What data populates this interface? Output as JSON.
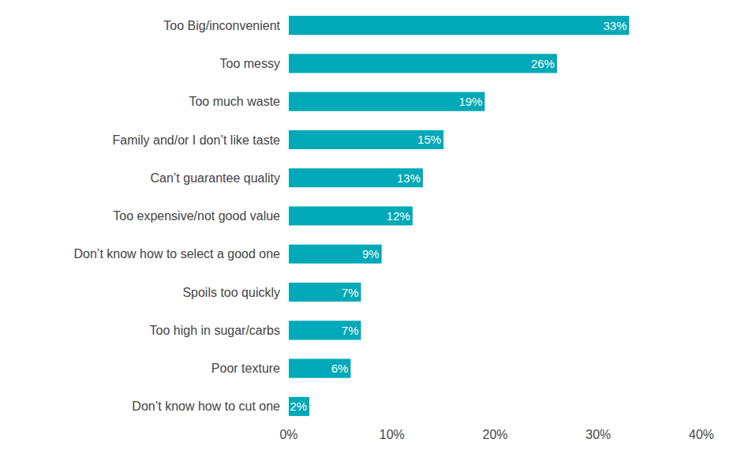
{
  "chart_data": {
    "type": "bar",
    "orientation": "horizontal",
    "categories": [
      "Too Big/inconvenient",
      "Too messy",
      "Too much waste",
      "Family and/or I don’t like taste",
      "Can’t guarantee quality",
      "Too expensive/not good value",
      "Don’t know how to select a good one",
      "Spoils too quickly",
      "Too high in sugar/carbs",
      "Poor texture",
      "Don’t know how to cut one"
    ],
    "values": [
      33,
      26,
      19,
      15,
      13,
      12,
      9,
      7,
      7,
      6,
      2
    ],
    "value_labels": [
      "33%",
      "26%",
      "19%",
      "15%",
      "13%",
      "12%",
      "9%",
      "7%",
      "7%",
      "6%",
      "2%"
    ],
    "data_labels": true,
    "color": "#00a9b7",
    "xlim": [
      0,
      40
    ],
    "xticks": [
      {
        "value": 0,
        "label": "0%"
      },
      {
        "value": 10,
        "label": "10%"
      },
      {
        "value": 20,
        "label": "20%"
      },
      {
        "value": 30,
        "label": "30%"
      },
      {
        "value": 40,
        "label": "40%"
      }
    ],
    "grid": false
  }
}
